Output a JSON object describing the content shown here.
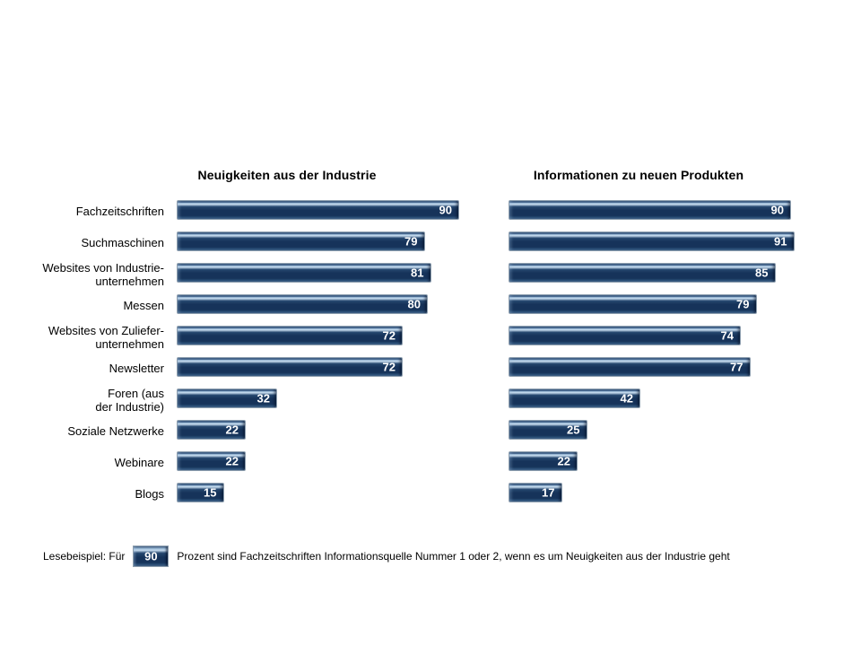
{
  "page": {
    "background_color": "#ffffff",
    "bar_fill_color": "#16335A",
    "bar_highlight_color": "#C6DBEE",
    "bar_border_color": "#8D9EAE",
    "value_label_color": "#FFFFFF"
  },
  "chart_data": {
    "type": "bar",
    "orientation": "horizontal",
    "value_unit": "Prozent",
    "xlim": [
      0,
      100
    ],
    "grid": false,
    "legend_position": "none",
    "value_labels": "inside-right",
    "categories": [
      "Fachzeitschriften",
      "Suchmaschinen",
      "Websites von Industrie-\nunternehmen",
      "Messen",
      "Websites von Zuliefer-\nunternehmen",
      "Newsletter",
      "Foren (aus\nder Industrie)",
      "Soziale Netzwerke",
      "Webinare",
      "Blogs"
    ],
    "series": [
      {
        "name": "Neuigkeiten aus der Industrie",
        "values": [
          90,
          79,
          81,
          80,
          72,
          72,
          32,
          22,
          22,
          15
        ]
      },
      {
        "name": "Informationen zu neuen Produkten",
        "values": [
          90,
          91,
          85,
          79,
          74,
          77,
          42,
          25,
          22,
          17
        ]
      }
    ]
  },
  "footer": {
    "prefix": "Lesebeispiel: Für",
    "sample_value": "90",
    "suffix": "Prozent sind Fachzeitschriften Informationsquelle Nummer 1 oder 2, wenn es um Neuigkeiten aus der Industrie geht"
  }
}
